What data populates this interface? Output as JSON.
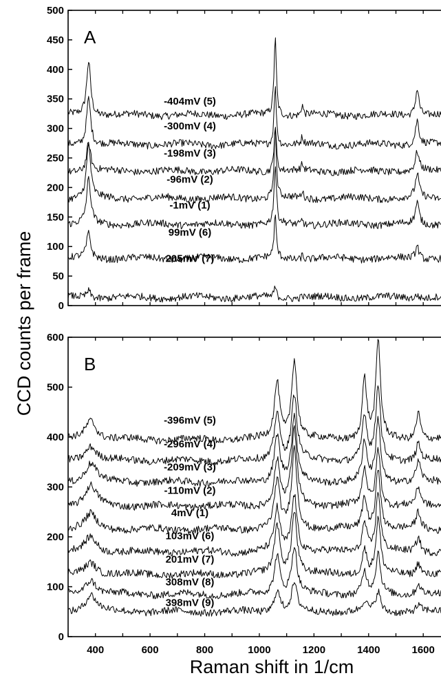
{
  "chart_data": {
    "type": "line",
    "ylabel": "CCD counts per frame",
    "xlabel": "Raman shift in 1/cm",
    "xlim": [
      300,
      1665
    ],
    "xticks": [
      400,
      600,
      800,
      1000,
      1200,
      1400,
      1600
    ],
    "panels": [
      {
        "label": "A",
        "ylim": [
          0,
          500
        ],
        "yticks": [
          0,
          50,
          100,
          150,
          200,
          250,
          300,
          350,
          400,
          450,
          500
        ],
        "peaks": [
          {
            "center": 375,
            "width": 9
          },
          {
            "center": 1058,
            "width": 5
          },
          {
            "center": 1157,
            "width": 4
          },
          {
            "center": 1578,
            "width": 8
          }
        ],
        "series": [
          {
            "name": "-404mV (5)",
            "base": 323,
            "label_y": 346,
            "peak_heights": [
              92,
              132,
              18,
              46
            ]
          },
          {
            "name": "-300mV (4)",
            "base": 273,
            "label_y": 304,
            "peak_heights": [
              80,
              100,
              12,
              42
            ]
          },
          {
            "name": "-198mV (3)",
            "base": 228,
            "label_y": 258,
            "peak_heights": [
              48,
              80,
              10,
              32
            ]
          },
          {
            "name": "-96mV (2)",
            "base": 182,
            "label_y": 214,
            "peak_heights": [
              90,
              118,
              12,
              40
            ]
          },
          {
            "name": "-1mV (1)",
            "base": 138,
            "label_y": 170,
            "peak_heights": [
              75,
              100,
              10,
              36
            ]
          },
          {
            "name": "99mV (6)",
            "base": 80,
            "label_y": 124,
            "peak_heights": [
              42,
              70,
              8,
              22
            ]
          },
          {
            "name": "205mV (7)",
            "base": 14,
            "label_y": 80,
            "peak_heights": [
              12,
              18,
              4,
              6
            ]
          }
        ]
      },
      {
        "label": "B",
        "ylim": [
          0,
          600
        ],
        "yticks": [
          0,
          100,
          200,
          300,
          400,
          500,
          600
        ],
        "peaks": [
          {
            "center": 383,
            "width": 25
          },
          {
            "center": 1065,
            "width": 12
          },
          {
            "center": 1128,
            "width": 12
          },
          {
            "center": 1385,
            "width": 10
          },
          {
            "center": 1435,
            "width": 10
          },
          {
            "center": 1582,
            "width": 10
          }
        ],
        "series": [
          {
            "name": "-396mV (5)",
            "base": 395,
            "label_y": 434,
            "peak_heights": [
              40,
              115,
              160,
              120,
              195,
              55
            ]
          },
          {
            "name": "-296mV (4)",
            "base": 353,
            "label_y": 386,
            "peak_heights": [
              30,
              100,
              130,
              90,
              150,
              35
            ]
          },
          {
            "name": "-209mV (3)",
            "base": 310,
            "label_y": 340,
            "peak_heights": [
              38,
              95,
              125,
              80,
              125,
              40
            ]
          },
          {
            "name": "-110mV (2)",
            "base": 262,
            "label_y": 293,
            "peak_heights": [
              40,
              90,
              150,
              75,
              115,
              35
            ]
          },
          {
            "name": "4mV (1)",
            "base": 215,
            "label_y": 248,
            "peak_heights": [
              30,
              95,
              160,
              65,
              125,
              35
            ]
          },
          {
            "name": "103mV (6)",
            "base": 170,
            "label_y": 202,
            "peak_heights": [
              30,
              85,
              115,
              60,
              120,
              30
            ]
          },
          {
            "name": "201mV (7)",
            "base": 125,
            "label_y": 155,
            "peak_heights": [
              25,
              100,
              125,
              50,
              110,
              25
            ]
          },
          {
            "name": "308mV (8)",
            "base": 85,
            "label_y": 110,
            "peak_heights": [
              30,
              80,
              95,
              45,
              80,
              22
            ]
          },
          {
            "name": "398mV (9)",
            "base": 50,
            "label_y": 68,
            "peak_heights": [
              35,
              45,
              55,
              20,
              40,
              12
            ]
          }
        ]
      }
    ]
  }
}
